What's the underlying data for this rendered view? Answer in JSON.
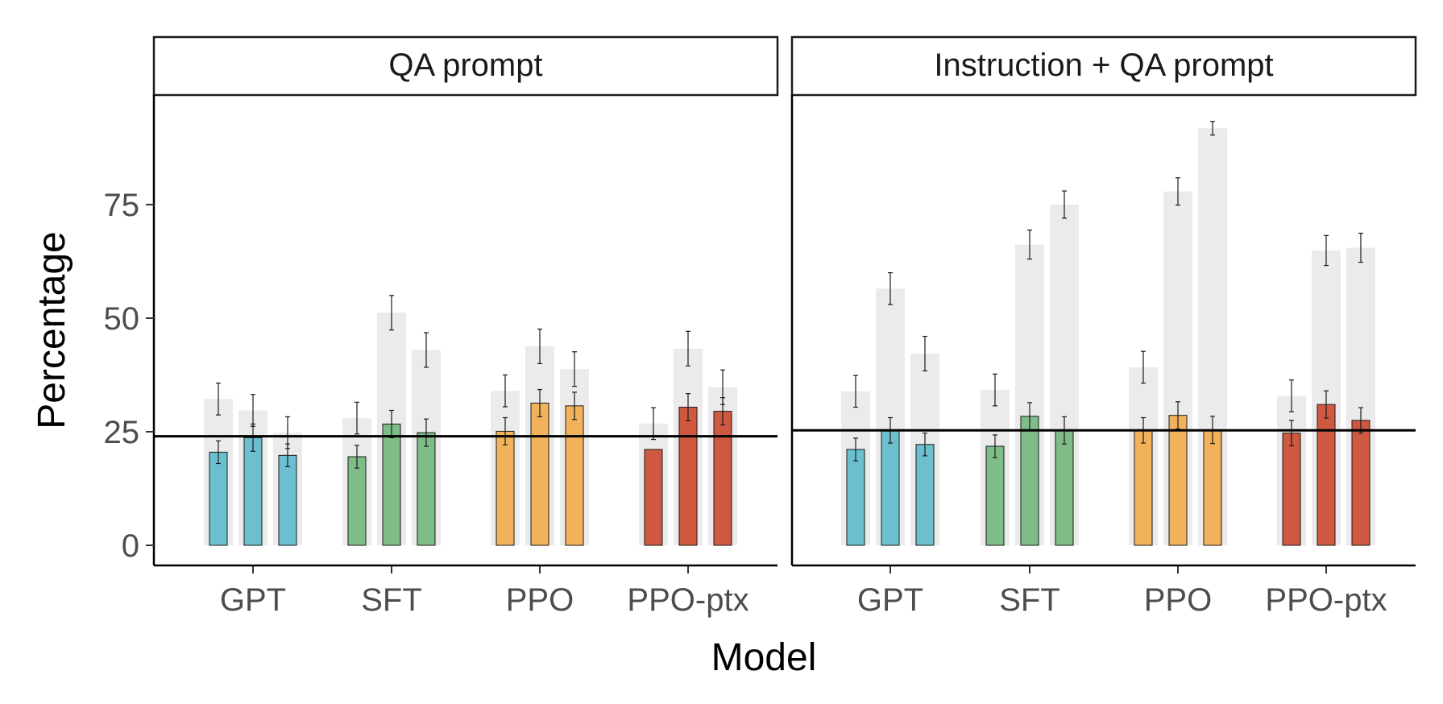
{
  "chart_data": {
    "type": "bar",
    "xlabel": "Model",
    "ylabel": "Percentage",
    "ylim": [
      0,
      100
    ],
    "y_ticks": [
      "0",
      "25",
      "50",
      "75"
    ],
    "categories": [
      "GPT",
      "SFT",
      "PPO",
      "PPO-ptx"
    ],
    "category_colors": [
      "#6bbfcf",
      "#7ebd87",
      "#f2b25c",
      "#cf5840"
    ],
    "background_bar_color": "#ebebeb",
    "grid": false,
    "legend": "none",
    "panels": [
      {
        "title": "QA prompt",
        "reference_line": 24,
        "groups": [
          {
            "category": "GPT",
            "colored": [
              {
                "value": 20.5,
                "err": 2.5
              },
              {
                "value": 23.7,
                "err": 3.0
              },
              {
                "value": 19.8,
                "err": 2.5
              }
            ],
            "background": [
              {
                "value": 32.2,
                "err": 3.5
              },
              {
                "value": 29.7,
                "err": 3.5
              },
              {
                "value": 24.8,
                "err": 3.5
              }
            ]
          },
          {
            "category": "SFT",
            "colored": [
              {
                "value": 19.5,
                "err": 2.5
              },
              {
                "value": 26.7,
                "err": 3.0
              },
              {
                "value": 24.8,
                "err": 3.0
              }
            ],
            "background": [
              {
                "value": 28.0,
                "err": 3.5
              },
              {
                "value": 51.2,
                "err": 3.8
              },
              {
                "value": 43.0,
                "err": 3.8
              }
            ]
          },
          {
            "category": "PPO",
            "colored": [
              {
                "value": 25.1,
                "err": 3.0
              },
              {
                "value": 31.3,
                "err": 3.0
              },
              {
                "value": 30.7,
                "err": 3.0
              }
            ],
            "background": [
              {
                "value": 34.0,
                "err": 3.5
              },
              {
                "value": 43.8,
                "err": 3.8
              },
              {
                "value": 38.8,
                "err": 3.8
              }
            ]
          },
          {
            "category": "PPO-ptx",
            "colored": [
              {
                "value": 21.1,
                "err": 0
              },
              {
                "value": 30.4,
                "err": 3.0
              },
              {
                "value": 29.5,
                "err": 3.0
              }
            ],
            "background": [
              {
                "value": 26.8,
                "err": 3.5
              },
              {
                "value": 43.3,
                "err": 3.8
              },
              {
                "value": 34.8,
                "err": 3.8
              }
            ]
          }
        ]
      },
      {
        "title": "Instruction + QA prompt",
        "reference_line": 25.3,
        "groups": [
          {
            "category": "GPT",
            "colored": [
              {
                "value": 21.1,
                "err": 2.5
              },
              {
                "value": 25.3,
                "err": 2.8
              },
              {
                "value": 22.2,
                "err": 2.5
              }
            ],
            "background": [
              {
                "value": 33.9,
                "err": 3.5
              },
              {
                "value": 56.5,
                "err": 3.5
              },
              {
                "value": 42.2,
                "err": 3.8
              }
            ]
          },
          {
            "category": "SFT",
            "colored": [
              {
                "value": 21.8,
                "err": 2.5
              },
              {
                "value": 28.4,
                "err": 3.0
              },
              {
                "value": 25.3,
                "err": 3.0
              }
            ],
            "background": [
              {
                "value": 34.2,
                "err": 3.5
              },
              {
                "value": 66.2,
                "err": 3.2
              },
              {
                "value": 75.0,
                "err": 3.0
              }
            ]
          },
          {
            "category": "PPO",
            "colored": [
              {
                "value": 25.3,
                "err": 2.8
              },
              {
                "value": 28.6,
                "err": 3.0
              },
              {
                "value": 25.4,
                "err": 3.0
              }
            ],
            "background": [
              {
                "value": 39.2,
                "err": 3.5
              },
              {
                "value": 77.9,
                "err": 3.0
              },
              {
                "value": 91.8,
                "err": 1.5
              }
            ]
          },
          {
            "category": "PPO-ptx",
            "colored": [
              {
                "value": 24.7,
                "err": 2.8
              },
              {
                "value": 31.0,
                "err": 3.0
              },
              {
                "value": 27.5,
                "err": 2.8
              }
            ],
            "background": [
              {
                "value": 32.9,
                "err": 3.5
              },
              {
                "value": 64.9,
                "err": 3.3
              },
              {
                "value": 65.5,
                "err": 3.2
              }
            ]
          }
        ]
      }
    ]
  }
}
